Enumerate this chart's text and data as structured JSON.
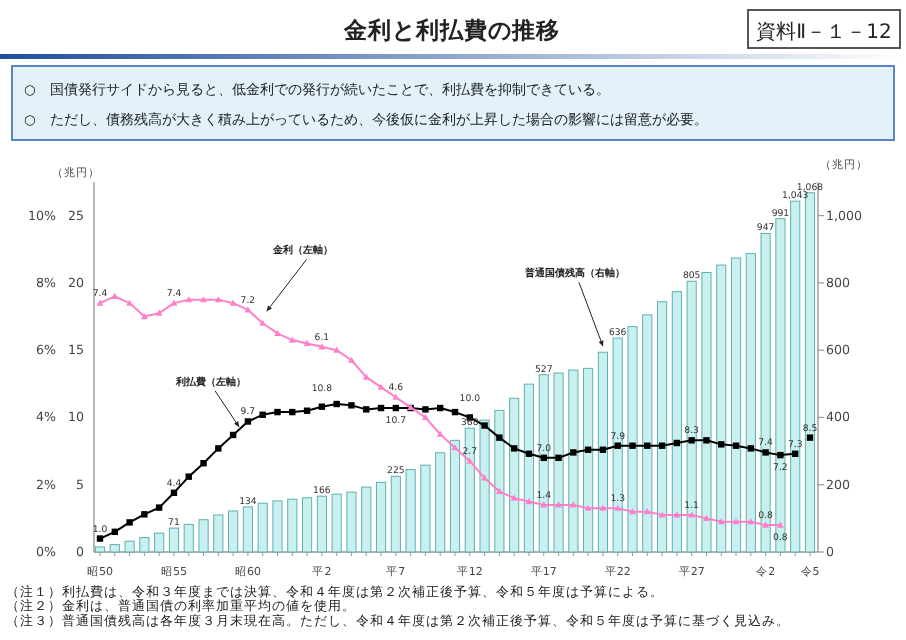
{
  "chart_data": {
    "type": "bar",
    "title": "金利と利払費の推移",
    "annotations": [
      "資料Ⅱ－１－12",
      "○　国債発行サイドから見ると、低金利での発行が続いたことで、利払費を抑制できている。",
      "○　ただし、債務残高が大きく積み上がっているため、今後仮に金利が上昇した場合の影響には留意が必要。",
      "（注１）利払費は、令和３年度までは決算、令和４年度は第２次補正後予算、令和５年度は予算による。",
      "（注２）金利は、普通国債の利率加重平均の値を使用。",
      "（注３）普通国債残高は各年度３月末現在高。ただし、令和４年度は第２次補正後予算、令和５年度は予算に基づく見込み。"
    ],
    "ylabel": "（兆円）",
    "y2label": "（兆円）",
    "categories": [
      "昭50",
      null,
      null,
      null,
      null,
      "昭55",
      null,
      null,
      null,
      null,
      "昭60",
      null,
      null,
      null,
      null,
      "平2",
      null,
      null,
      null,
      null,
      "平7",
      null,
      null,
      null,
      null,
      "平12",
      null,
      null,
      null,
      null,
      "平17",
      null,
      null,
      null,
      null,
      "平22",
      null,
      null,
      null,
      null,
      "平27",
      null,
      null,
      null,
      null,
      "令2",
      null,
      null,
      "令5"
    ],
    "ylim": [
      0,
      11
    ],
    "yticks": [
      {
        "value": 0,
        "label": "0%"
      },
      {
        "value": 2,
        "label": "2%"
      },
      {
        "value": 4,
        "label": "4%"
      },
      {
        "value": 6,
        "label": "6%"
      },
      {
        "value": 8,
        "label": "8%"
      },
      {
        "value": 10,
        "label": "10%"
      }
    ],
    "y3lim": [
      0,
      27.5
    ],
    "y3ticks": [
      0,
      5,
      10,
      15,
      20,
      25
    ],
    "y2lim": [
      0,
      1100
    ],
    "y2ticks": [
      0,
      200,
      400,
      600,
      800,
      {
        "value": 1000,
        "label": "1,000"
      }
    ],
    "legend": false,
    "grid": false,
    "series": [
      {
        "name": "普通国債残高（右軸）",
        "axis": "y2",
        "color": "#c8f0f0",
        "values": [
          15,
          22,
          32,
          43,
          56,
          71,
          82,
          96,
          110,
          122,
          134,
          145,
          152,
          157,
          161,
          166,
          172,
          178,
          193,
          207,
          225,
          245,
          258,
          295,
          332,
          368,
          392,
          421,
          457,
          499,
          527,
          532,
          541,
          546,
          594,
          636,
          670,
          705,
          744,
          774,
          805,
          831,
          853,
          874,
          887,
          947,
          991,
          1043,
          1068
        ],
        "value_labels": [
          null,
          null,
          null,
          null,
          null,
          "71",
          null,
          null,
          null,
          null,
          "134",
          null,
          null,
          null,
          null,
          "166",
          null,
          null,
          null,
          null,
          "225",
          null,
          null,
          null,
          null,
          "368",
          null,
          null,
          null,
          null,
          "527",
          null,
          null,
          null,
          null,
          "636",
          null,
          null,
          null,
          null,
          "805",
          null,
          null,
          null,
          null,
          "947",
          "991",
          "1,043",
          "1,068"
        ]
      },
      {
        "name": "金利（左軸）",
        "type": "line",
        "axis": "y",
        "color": "#ff80c8",
        "marker": "triangle",
        "values": [
          7.4,
          7.6,
          7.4,
          7.0,
          7.1,
          7.4,
          7.5,
          7.5,
          7.5,
          7.4,
          7.2,
          6.8,
          6.5,
          6.3,
          6.2,
          6.1,
          6.0,
          5.7,
          5.2,
          4.9,
          4.6,
          4.3,
          4.0,
          3.5,
          3.1,
          2.7,
          2.2,
          1.8,
          1.6,
          1.5,
          1.4,
          1.4,
          1.4,
          1.3,
          1.3,
          1.3,
          1.2,
          1.2,
          1.1,
          1.1,
          1.1,
          1.0,
          0.9,
          0.9,
          0.9,
          0.8,
          0.8,
          null,
          null
        ],
        "value_labels": [
          "7.4",
          null,
          null,
          null,
          null,
          "7.4",
          null,
          null,
          null,
          null,
          "7.2",
          null,
          null,
          null,
          null,
          "6.1",
          null,
          null,
          null,
          null,
          "4.6",
          null,
          null,
          null,
          null,
          "2.7",
          null,
          null,
          null,
          null,
          "1.4",
          null,
          null,
          null,
          null,
          "1.3",
          null,
          null,
          null,
          null,
          "1.1",
          null,
          null,
          null,
          null,
          "0.8",
          "0.8",
          null,
          null
        ]
      },
      {
        "name": "利払費（左軸）",
        "type": "line",
        "axis": "y3",
        "color": "#000000",
        "marker": "square",
        "values": [
          1.0,
          1.5,
          2.2,
          2.8,
          3.3,
          4.4,
          5.6,
          6.6,
          7.7,
          8.7,
          9.7,
          10.2,
          10.4,
          10.4,
          10.5,
          10.8,
          11.0,
          10.9,
          10.6,
          10.7,
          10.7,
          10.7,
          10.6,
          10.7,
          10.4,
          10.0,
          9.4,
          8.5,
          7.7,
          7.3,
          7.0,
          7.0,
          7.4,
          7.6,
          7.6,
          7.9,
          7.9,
          7.9,
          7.9,
          8.1,
          8.3,
          8.3,
          8.0,
          7.9,
          7.7,
          7.4,
          7.2,
          7.3,
          null
        ],
        "value_labels": [
          "1.0",
          null,
          null,
          null,
          null,
          "4.4",
          null,
          null,
          null,
          null,
          "9.7",
          null,
          null,
          null,
          null,
          "10.8",
          null,
          null,
          null,
          null,
          "10.7",
          null,
          null,
          null,
          null,
          "10.0",
          null,
          null,
          null,
          null,
          "7.0",
          null,
          null,
          null,
          null,
          "7.9",
          null,
          null,
          null,
          null,
          "8.3",
          null,
          null,
          null,
          null,
          "7.4",
          "7.2",
          "7.3",
          null
        ]
      },
      {
        "type": "scatter",
        "axis": "y3",
        "color": "#000000",
        "marker": "square",
        "values": [
          null,
          null,
          null,
          null,
          null,
          null,
          null,
          null,
          null,
          null,
          null,
          null,
          null,
          null,
          null,
          null,
          null,
          null,
          null,
          null,
          null,
          null,
          null,
          null,
          null,
          null,
          null,
          null,
          null,
          null,
          null,
          null,
          null,
          null,
          null,
          null,
          null,
          null,
          null,
          null,
          null,
          null,
          null,
          null,
          null,
          null,
          null,
          null,
          8.5
        ],
        "value_labels": [
          null,
          null,
          null,
          null,
          null,
          null,
          null,
          null,
          null,
          null,
          null,
          null,
          null,
          null,
          null,
          null,
          null,
          null,
          null,
          null,
          null,
          null,
          null,
          null,
          null,
          null,
          null,
          null,
          null,
          null,
          null,
          null,
          null,
          null,
          null,
          null,
          null,
          null,
          null,
          null,
          null,
          null,
          null,
          null,
          null,
          null,
          null,
          null,
          "8.5"
        ]
      }
    ]
  }
}
